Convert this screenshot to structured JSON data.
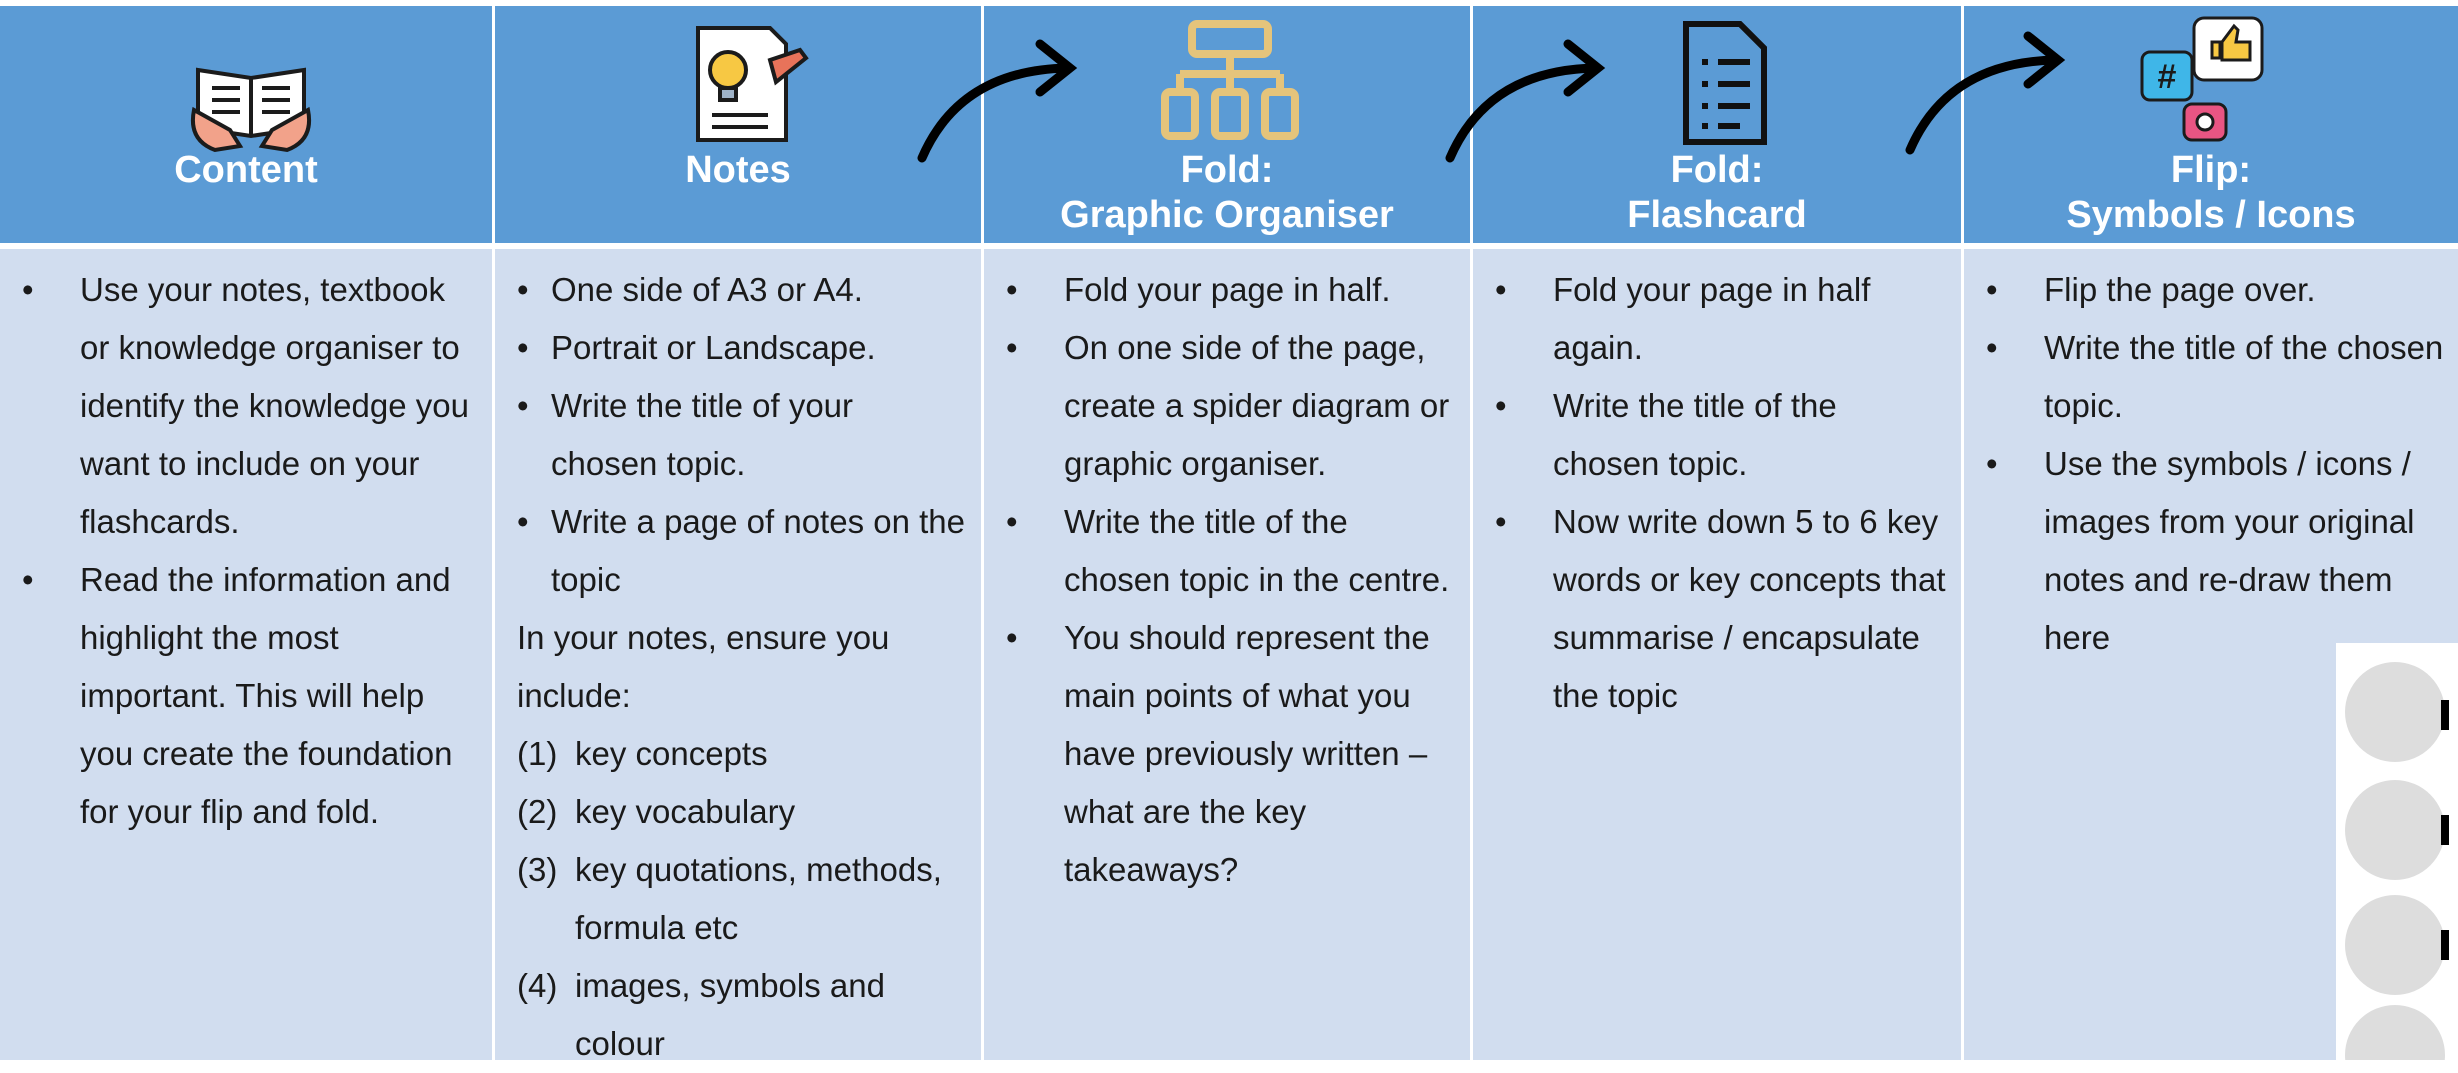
{
  "columns": [
    {
      "title": [
        "Content"
      ],
      "items": [
        {
          "marker": "•",
          "text": "Use your notes, textbook or knowledge organiser to identify the knowledge you want to include on your flashcards."
        },
        {
          "marker": "•",
          "text": "Read the information and highlight the most important. This will help you create the foundation for your flip and fold."
        }
      ]
    },
    {
      "title": [
        "Notes"
      ],
      "items": [
        {
          "marker": "•",
          "text": "One side of A3 or A4."
        },
        {
          "marker": "•",
          "text": "Portrait or Landscape."
        },
        {
          "marker": "•",
          "text": "Write the title of your chosen topic."
        },
        {
          "marker": "•",
          "text": "Write a page of notes on the topic"
        },
        {
          "text": "In your notes, ensure you include:"
        },
        {
          "marker": "(1)",
          "text": "key concepts"
        },
        {
          "marker": "(2)",
          "text": "key vocabulary"
        },
        {
          "marker": "(3)",
          "text": "key quotations, methods, formula etc"
        },
        {
          "marker": "(4)",
          "text": "images, symbols and colour"
        }
      ]
    },
    {
      "title": [
        "Fold:",
        "Graphic Organiser"
      ],
      "items": [
        {
          "marker": "•",
          "text": "Fold your page in half."
        },
        {
          "marker": "•",
          "text": "On one side of the page, create a spider diagram or graphic organiser."
        },
        {
          "marker": "•",
          "text": "Write the title of the chosen topic in the centre."
        },
        {
          "marker": "•",
          "text": "You should represent the main points of what you have previously written – what are the key takeaways?"
        }
      ]
    },
    {
      "title": [
        "Fold:",
        "Flashcard"
      ],
      "items": [
        {
          "marker": "•",
          "text": "Fold your page in half again."
        },
        {
          "marker": "•",
          "text": "Write the title of the chosen topic."
        },
        {
          "marker": "•",
          "text": "Now write down 5 to 6 key words or key concepts that summarise / encapsulate the topic"
        }
      ]
    },
    {
      "title": [
        "Flip:",
        "Symbols / Icons"
      ],
      "items": [
        {
          "marker": "•",
          "text": "Flip the page over."
        },
        {
          "marker": "•",
          "text": "Write the title of the chosen topic."
        },
        {
          "marker": "•",
          "text": "Use the symbols / icons / images from your original notes and re-draw them here"
        }
      ]
    }
  ]
}
